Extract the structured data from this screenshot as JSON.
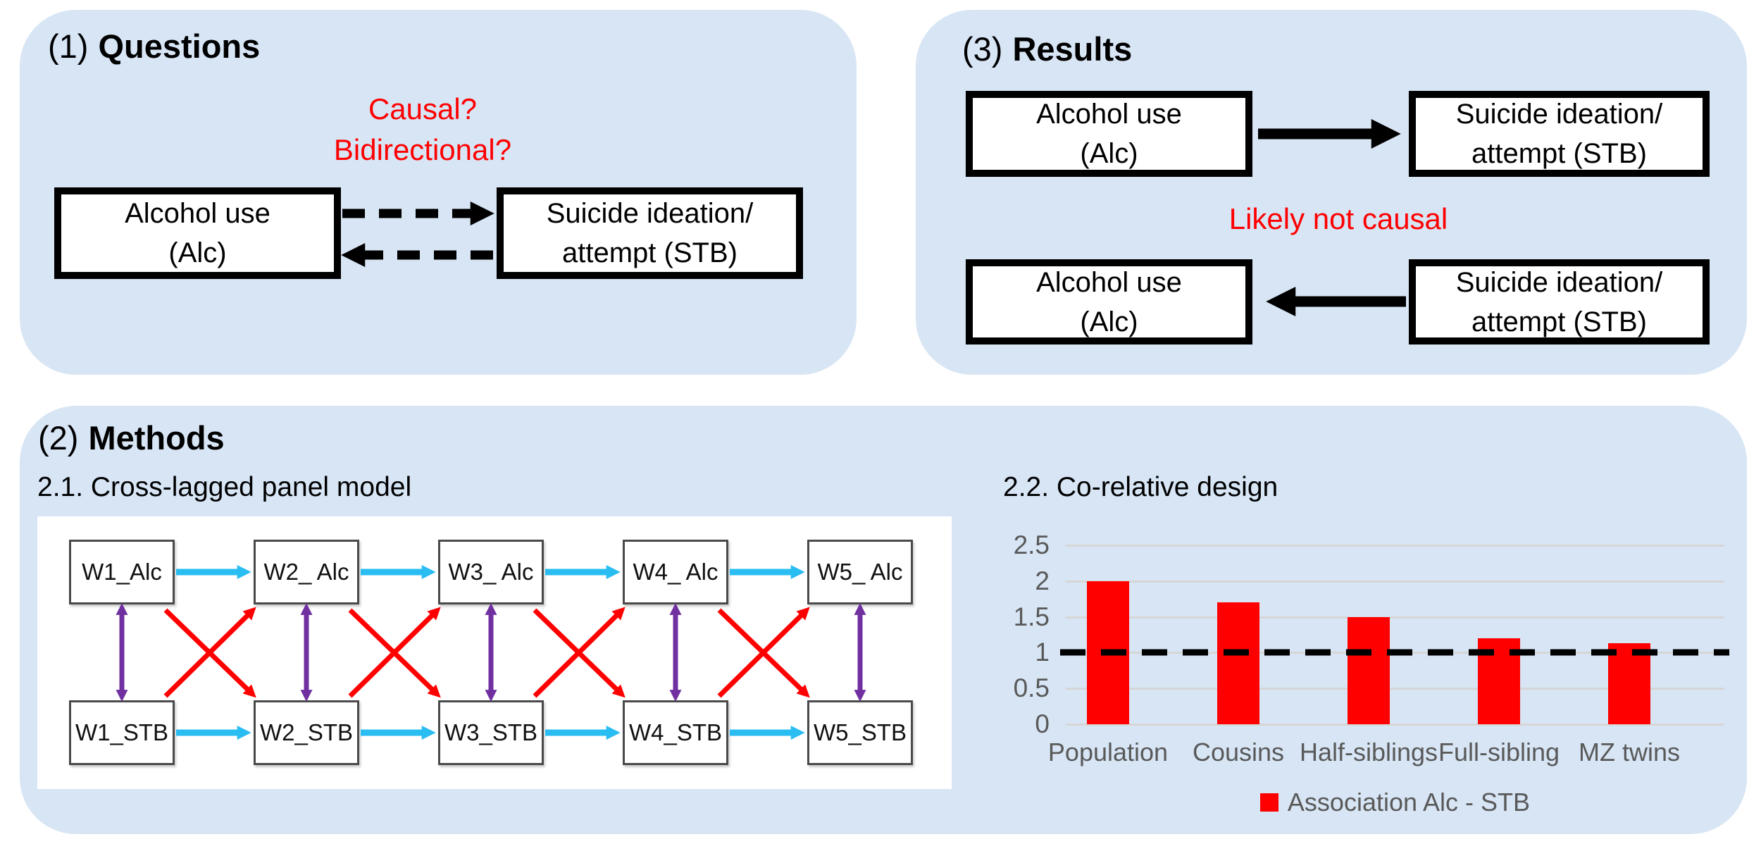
{
  "colors": {
    "panel_background": "#d7e5f5",
    "annotation_red": "#ff0000",
    "bar_red": "#ff0000",
    "cyan_arrow": "#29bdf2",
    "purple_arrow": "#7030a0",
    "diagonal_red_arrow": "#ff0000",
    "axis_text_gray": "#595959",
    "gridline_gray": "#d6d6d6",
    "black": "#000000"
  },
  "panels": {
    "questions": {
      "number": "(1)",
      "title": "Questions",
      "annotation_line1": "Causal?",
      "annotation_line2": "Bidirectional?",
      "left_box": {
        "line1": "Alcohol use",
        "line2": "(Alc)"
      },
      "right_box": {
        "line1": "Suicide ideation/",
        "line2": "attempt (STB)"
      },
      "arrows": [
        {
          "from": "Alcohol use (Alc)",
          "to": "Suicide ideation/attempt (STB)",
          "style": "dashed"
        },
        {
          "from": "Suicide ideation/attempt (STB)",
          "to": "Alcohol use (Alc)",
          "style": "dashed"
        }
      ]
    },
    "results": {
      "number": "(3)",
      "title": "Results",
      "annotation": "Likely not causal",
      "row1": {
        "left_box": {
          "line1": "Alcohol use",
          "line2": "(Alc)"
        },
        "right_box": {
          "line1": "Suicide ideation/",
          "line2": "attempt (STB)"
        },
        "arrow": {
          "from": "Alcohol use (Alc)",
          "to": "Suicide ideation/attempt (STB)",
          "style": "solid"
        }
      },
      "row2": {
        "left_box": {
          "line1": "Alcohol use",
          "line2": "(Alc)"
        },
        "right_box": {
          "line1": "Suicide ideation/",
          "line2": "attempt (STB)"
        },
        "arrow": {
          "from": "Suicide ideation/attempt (STB)",
          "to": "Alcohol use (Alc)",
          "style": "solid"
        }
      }
    },
    "methods": {
      "number": "(2)",
      "title": "Methods",
      "subsection_1": "2.1. Cross-lagged panel model",
      "subsection_2": "2.2. Co-relative design",
      "cross_lagged": {
        "top_row": [
          "W1_Alc",
          "W2_ Alc",
          "W3_ Alc",
          "W4_ Alc",
          "W5_ Alc"
        ],
        "bottom_row": [
          "W1_STB",
          "W2_STB",
          "W3_STB",
          "W4_STB",
          "W5_STB"
        ],
        "horizontal_arrow_color": "#29bdf2",
        "vertical_arrow_color": "#7030a0",
        "diagonal_arrow_color": "#ff0000"
      }
    }
  },
  "chart_data": {
    "type": "bar",
    "title": "2.2. Co-relative design",
    "categories": [
      "Population",
      "Cousins",
      "Half-siblings",
      "Full-sibling",
      "MZ twins"
    ],
    "values": [
      2.0,
      1.7,
      1.5,
      1.2,
      1.13
    ],
    "series_name": "Association Alc - STB",
    "xlabel": "",
    "ylabel": "",
    "ylim": [
      0,
      2.5
    ],
    "yticks": [
      0,
      0.5,
      1,
      1.5,
      2,
      2.5
    ],
    "reference_line_y": 1,
    "bar_color": "#ff0000",
    "grid": true,
    "legend_position": "bottom"
  }
}
